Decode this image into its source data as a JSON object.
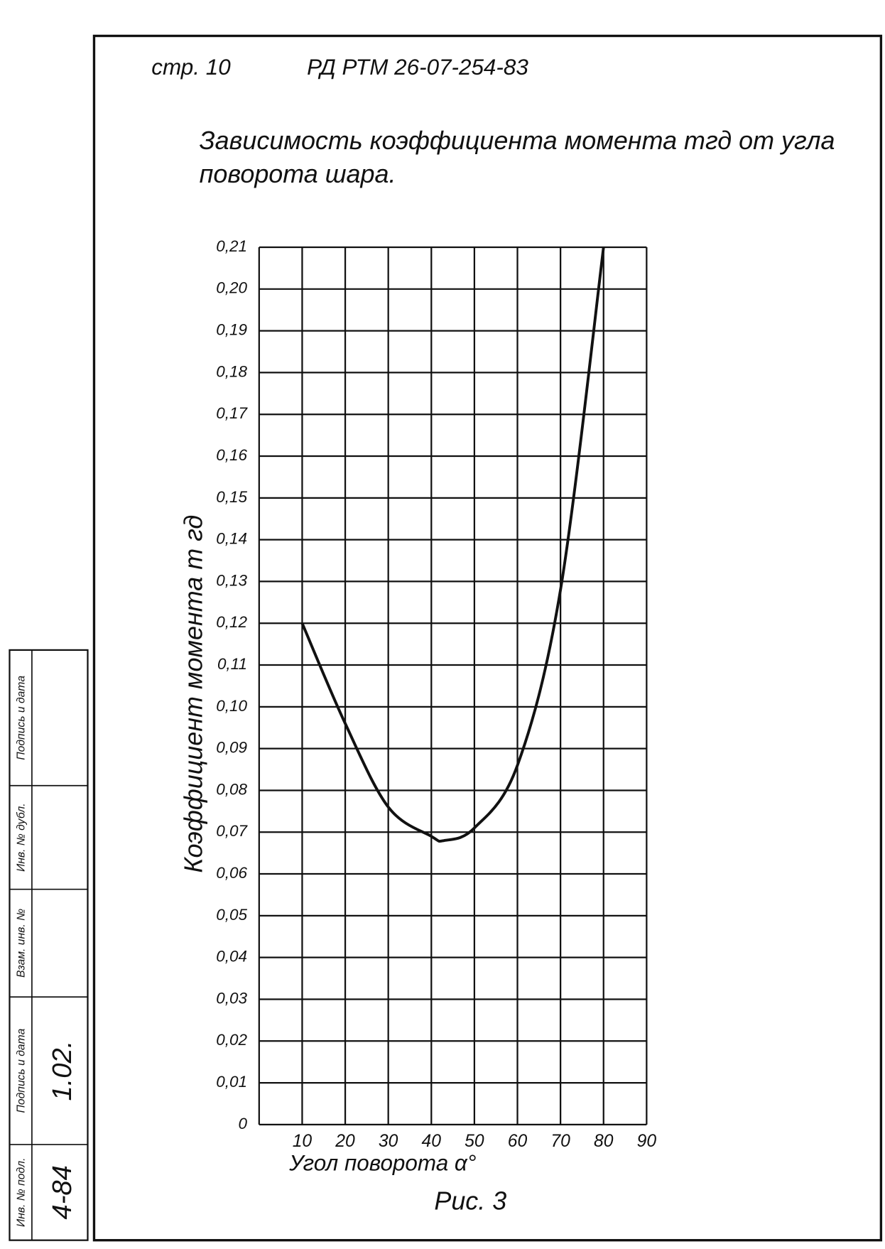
{
  "header": {
    "page": "стр. 10",
    "doc": "РД РТМ 26-07-254-83"
  },
  "chart_data": {
    "type": "line",
    "title": "Зависимость коэффициента момента mгд от угла поворота шара.",
    "x_label": "Угол поворота α°",
    "y_label": "Коэффициент момента m гд",
    "caption": "Рис. 3",
    "x": [
      10,
      20,
      30,
      40,
      43,
      50,
      60,
      70,
      80
    ],
    "series": [
      {
        "color": "#111111",
        "values": [
          0.12,
          0.096,
          0.076,
          0.069,
          0.068,
          0.071,
          0.086,
          0.128,
          0.21
        ]
      }
    ],
    "xlim": [
      0,
      90
    ],
    "ylim": [
      0,
      0.21
    ],
    "xticks": [
      10,
      20,
      30,
      40,
      50,
      60,
      70,
      80,
      90
    ],
    "yticks": [
      0,
      {
        "value": 0.01,
        "label": "0,01"
      },
      {
        "value": 0.02,
        "label": "0,02"
      },
      {
        "value": 0.03,
        "label": "0,03"
      },
      {
        "value": 0.04,
        "label": "0,04"
      },
      {
        "value": 0.05,
        "label": "0,05"
      },
      {
        "value": 0.06,
        "label": "0,06"
      },
      {
        "value": 0.07,
        "label": "0,07"
      },
      {
        "value": 0.08,
        "label": "0,08"
      },
      {
        "value": 0.09,
        "label": "0,09"
      },
      {
        "value": 0.1,
        "label": "0,10"
      },
      {
        "value": 0.11,
        "label": "0,11"
      },
      {
        "value": 0.12,
        "label": "0,12"
      },
      {
        "value": 0.13,
        "label": "0,13"
      },
      {
        "value": 0.14,
        "label": "0,14"
      },
      {
        "value": 0.15,
        "label": "0,15"
      },
      {
        "value": 0.16,
        "label": "0,16"
      },
      {
        "value": 0.17,
        "label": "0,17"
      },
      {
        "value": 0.18,
        "label": "0,18"
      },
      {
        "value": 0.19,
        "label": "0,19"
      },
      {
        "value": 0.2,
        "label": "0,20"
      },
      {
        "value": 0.21,
        "label": "0,21"
      }
    ],
    "grid": true
  },
  "stamp": {
    "labels": [
      "Подпись и дата",
      "Инв. № дубл.",
      "Взам. инв. №",
      "Подпись и дата",
      "Инв. № подл."
    ],
    "values": [
      "1.02.",
      "4-84"
    ]
  }
}
